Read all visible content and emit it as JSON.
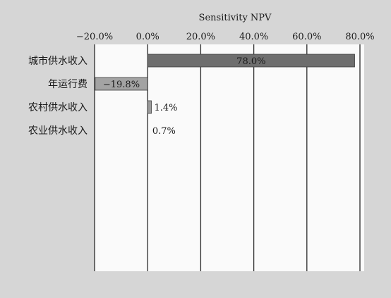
{
  "chart_data": {
    "type": "bar",
    "orientation": "horizontal",
    "title": "Sensitivity NPV",
    "categories": [
      "城市供水收入",
      "年运行费",
      "农村供水收入",
      "农业供水收入"
    ],
    "values": [
      78.0,
      -19.8,
      1.4,
      0.7
    ],
    "data_labels": [
      "78.0%",
      "−19.8%",
      "1.4%",
      "0.7%"
    ],
    "tick_values": [
      -20,
      0,
      20,
      40,
      60,
      80
    ],
    "tick_labels": [
      "−20.0%",
      "0.0%",
      "20.0%",
      "40.0%",
      "60.0%",
      "80.0%"
    ],
    "xlim": [
      -20,
      80
    ],
    "axis_position": "top",
    "grid": true,
    "legend": "none",
    "colors": {
      "background": "#d6d6d6",
      "plot": "#fafafa",
      "positive_bar": "#6e6e6e",
      "negative_bar": "#a3a3a3",
      "small_bar": "#9a9a9a",
      "grid": "#2a2a2a",
      "text": "#1a1a1a"
    }
  }
}
